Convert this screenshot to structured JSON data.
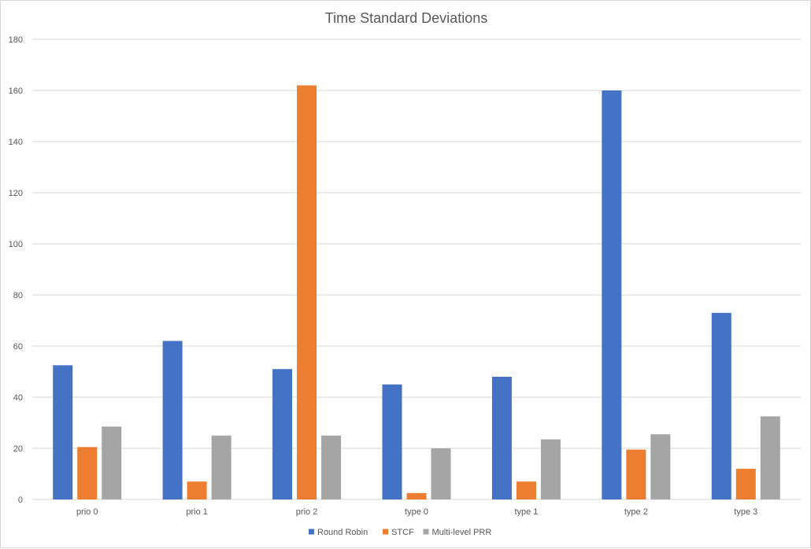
{
  "chart_data": {
    "type": "bar",
    "title": "Time Standard Deviations",
    "xlabel": "",
    "ylabel": "",
    "ylim": [
      0,
      180
    ],
    "ytick_step": 20,
    "grid": true,
    "legend_position": "bottom",
    "categories": [
      "prio 0",
      "prio 1",
      "prio 2",
      "type 0",
      "type 1",
      "type 2",
      "type 3"
    ],
    "series": [
      {
        "name": "Round Robin",
        "color": "#4472C4",
        "values": [
          52.5,
          62,
          51,
          45,
          48,
          160,
          73
        ]
      },
      {
        "name": "STCF",
        "color": "#ED7D31",
        "values": [
          20.5,
          7,
          162,
          2.5,
          7,
          19.5,
          12
        ]
      },
      {
        "name": "Multi-level PRR",
        "color": "#A5A5A5",
        "values": [
          28.5,
          25,
          25,
          20,
          23.5,
          25.5,
          32.5
        ]
      }
    ]
  }
}
